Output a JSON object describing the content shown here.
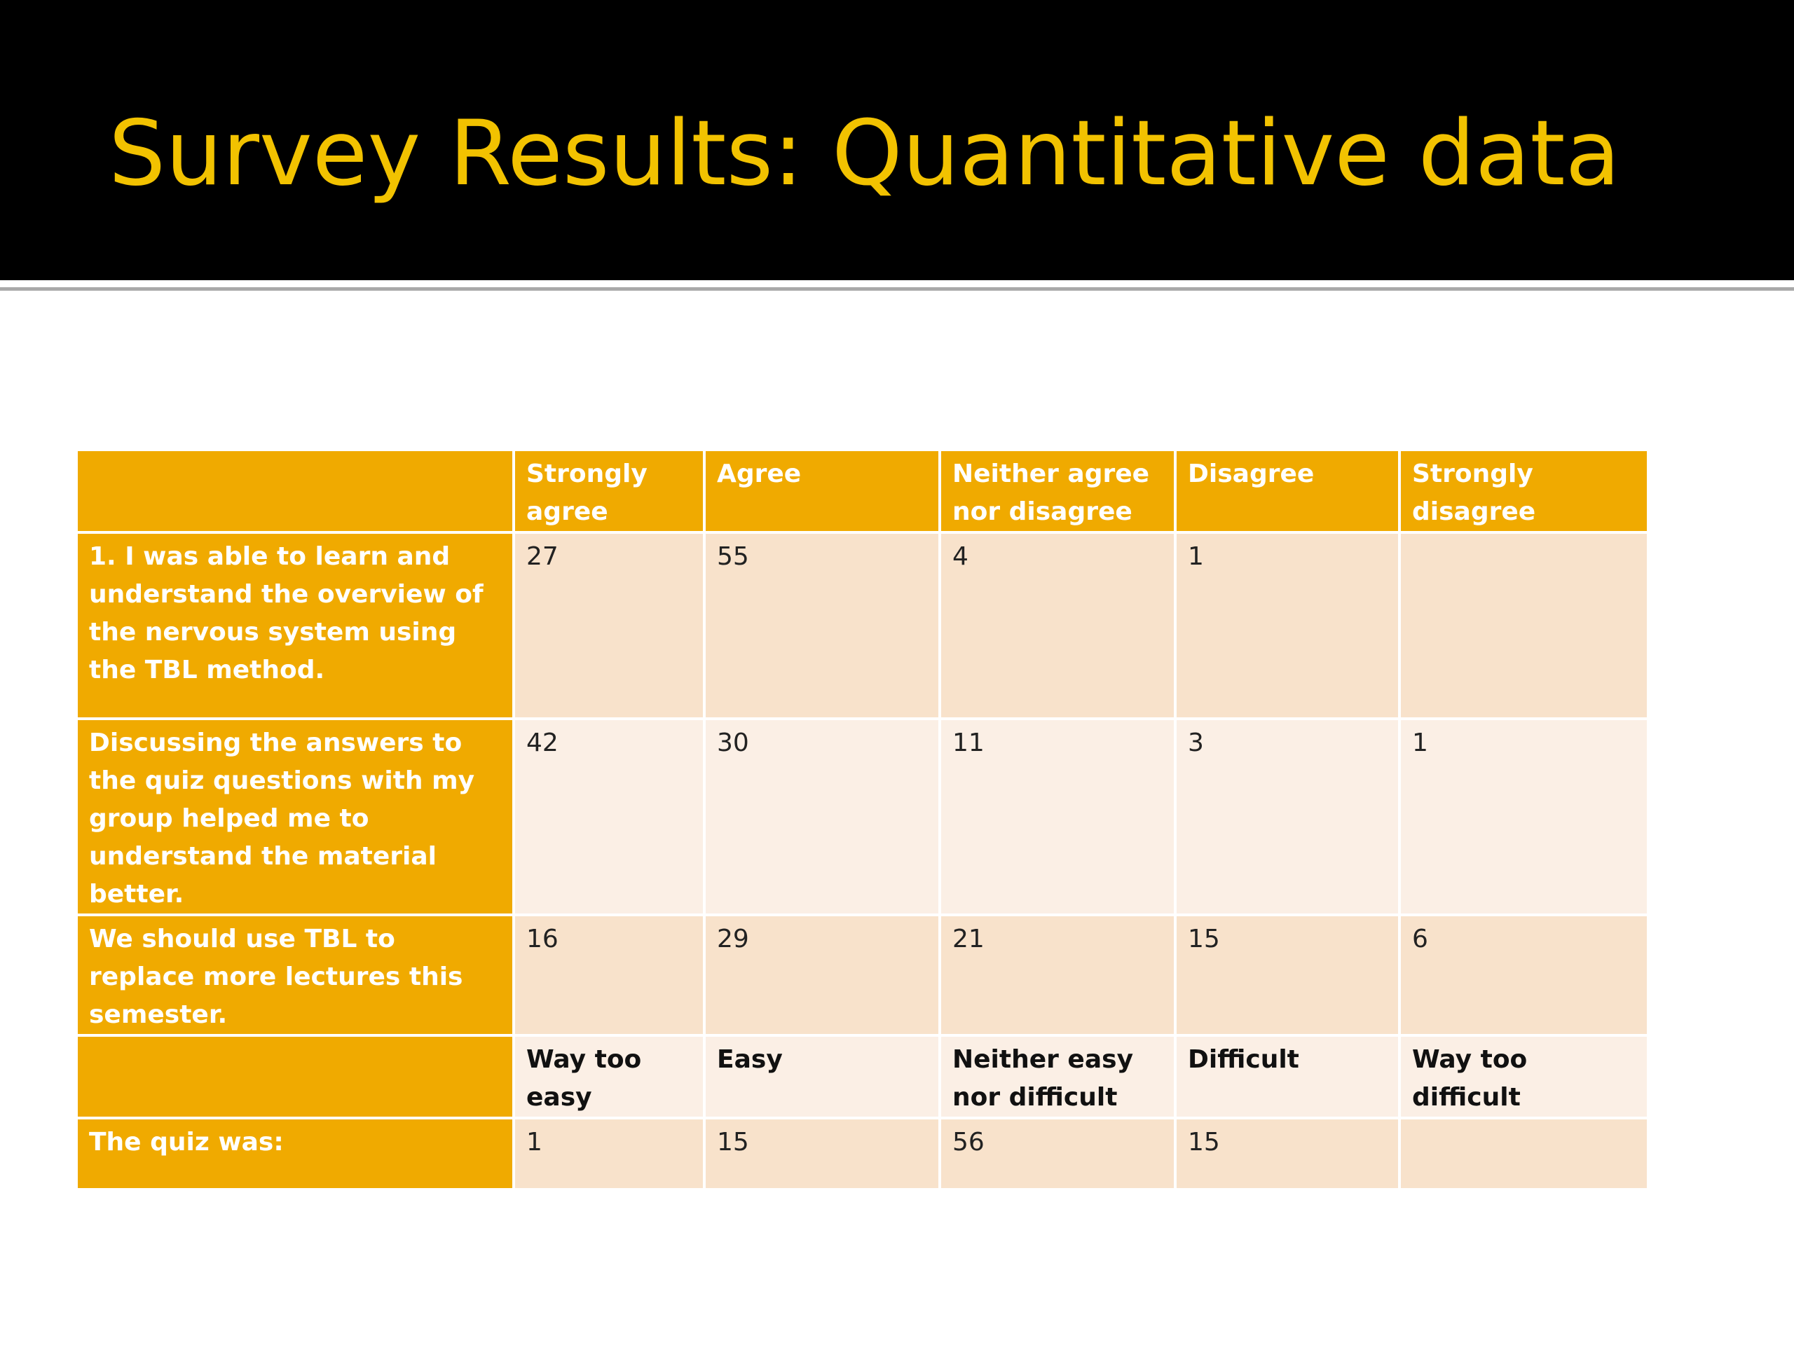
{
  "slide": {
    "title": "Survey Results: Quantitative data",
    "colors": {
      "title_band": "#000000",
      "title_text": "#f2c200",
      "header_fill": "#f0aa00",
      "row_band_a": "#f8e2cb",
      "row_band_b": "#fbefe5"
    }
  },
  "table": {
    "header": [
      "",
      "Strongly agree",
      "Agree",
      "Neither agree nor disagree",
      "Disagree",
      "Strongly disagree"
    ],
    "rows": [
      {
        "label": "1. I was able to learn and understand the overview of the nervous system using the TBL method.",
        "values": [
          "27",
          "55",
          "4",
          "1",
          ""
        ]
      },
      {
        "label": "Discussing the answers to the quiz questions with my group helped me to understand the material better.",
        "values": [
          "42",
          "30",
          "11",
          "3",
          "1"
        ]
      },
      {
        "label": "We should use TBL to replace more lectures this semester.",
        "values": [
          "16",
          "29",
          "21",
          "15",
          "6"
        ]
      }
    ],
    "subheader": {
      "label": "",
      "values": [
        "Way too easy",
        "Easy",
        "Neither easy nor difficult",
        "Difficult",
        "Way too difficult"
      ]
    },
    "quiz_row": {
      "label": "The quiz was:",
      "values": [
        "1",
        "15",
        "56",
        "15",
        ""
      ]
    }
  }
}
